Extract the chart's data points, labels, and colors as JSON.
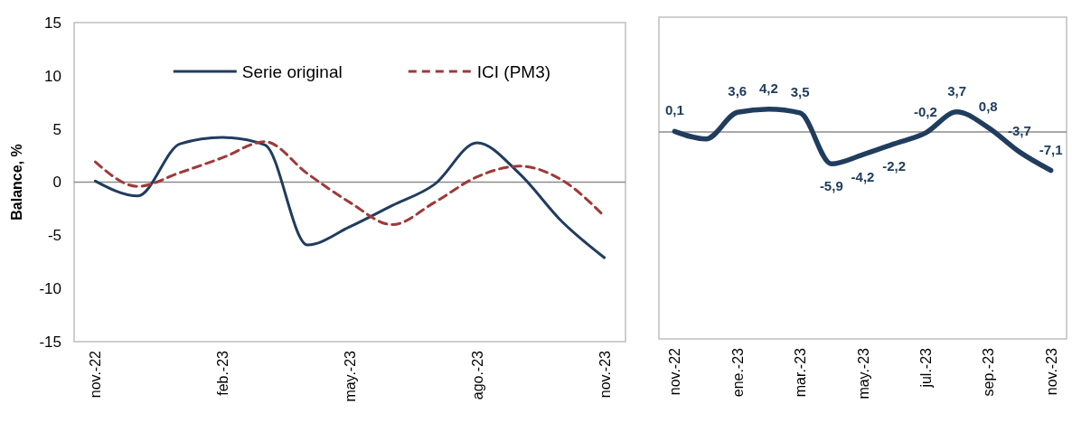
{
  "chart_data": [
    {
      "type": "line",
      "ylabel": "Balance, %",
      "categories": [
        "nov.-22",
        null,
        null,
        "feb.-23",
        null,
        null,
        "may.-23",
        null,
        null,
        "ago.-23",
        null,
        null,
        "nov.-23"
      ],
      "series": [
        {
          "name": "Serie original",
          "color": "#203d5e",
          "line_style": "solid",
          "values": [
            0.1,
            -1.3,
            3.6,
            4.2,
            3.5,
            -5.9,
            -4.2,
            -2.2,
            -0.2,
            3.7,
            0.8,
            -3.7,
            -7.1
          ]
        },
        {
          "name": "ICI (PM3)",
          "color": "#9e3a38",
          "line_style": "dashed",
          "values": [
            1.9,
            -0.4,
            0.9,
            2.3,
            3.8,
            0.8,
            -1.9,
            -4.0,
            -1.9,
            0.5,
            1.5,
            0.2,
            -3.2
          ]
        }
      ],
      "ylim": [
        -15,
        15
      ],
      "yticks": [
        -15,
        -10,
        -5,
        0,
        5,
        10,
        15
      ],
      "ref_lines": [
        {
          "axis": "y",
          "value": 0,
          "color": "#8c8c8c"
        }
      ],
      "legend": "top",
      "grid": false
    },
    {
      "type": "line",
      "tick_labels": "x",
      "ref_lines": [
        {
          "axis": "y",
          "value": 0,
          "color": "#8c8c8c"
        }
      ],
      "categories": [
        "nov.-22",
        null,
        "ene.-23",
        null,
        "mar.-23",
        null,
        "may.-23",
        null,
        "jul.-23",
        null,
        "sep.-23",
        null,
        "nov.-23"
      ],
      "series": [
        {
          "color": "#203d5e",
          "values": [
            0.1,
            -1.3,
            3.6,
            4.2,
            3.5,
            -5.9,
            -4.2,
            -2.2,
            -0.2,
            3.7,
            0.8,
            -3.7,
            -7.1
          ],
          "value_labels": [
            "0,1",
            null,
            "3,6",
            "4,2",
            "3,5",
            "-5,9",
            "-4,2",
            "-2,2",
            "-0,2",
            "3,7",
            "0,8",
            "-3,7",
            "-7,1"
          ]
        }
      ],
      "legend": false,
      "grid": false
    }
  ]
}
